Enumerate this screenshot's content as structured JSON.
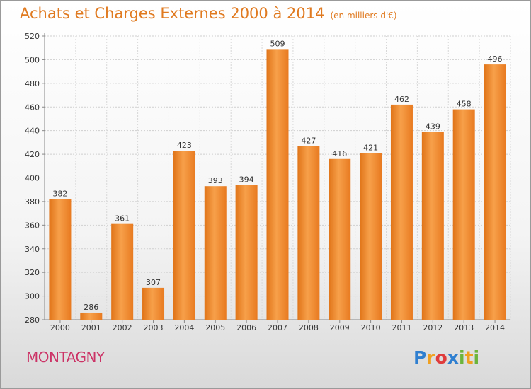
{
  "header": {
    "title": "Achats et Charges Externes 2000 à 2014",
    "subtitle": "(en milliers d'€)"
  },
  "footer": {
    "place": "MONTAGNY"
  },
  "logo": {
    "letters": [
      "P",
      "r",
      "o",
      "x",
      "i",
      "t",
      "i"
    ],
    "colors": [
      "#2f7fd0",
      "#f0a020",
      "#e03c3c",
      "#2f7fd0",
      "#6cb43c",
      "#f0a020",
      "#6cb43c"
    ]
  },
  "chart_data": {
    "type": "bar",
    "categories": [
      "2000",
      "2001",
      "2002",
      "2003",
      "2004",
      "2005",
      "2006",
      "2007",
      "2008",
      "2009",
      "2010",
      "2011",
      "2012",
      "2013",
      "2014"
    ],
    "values": [
      382,
      286,
      361,
      307,
      423,
      393,
      394,
      509,
      427,
      416,
      421,
      462,
      439,
      458,
      496
    ],
    "ylim": [
      280,
      520
    ],
    "yticks": [
      280,
      300,
      320,
      340,
      360,
      380,
      400,
      420,
      440,
      460,
      480,
      500,
      520
    ],
    "grid": true,
    "bar_color": "#f08c30"
  }
}
